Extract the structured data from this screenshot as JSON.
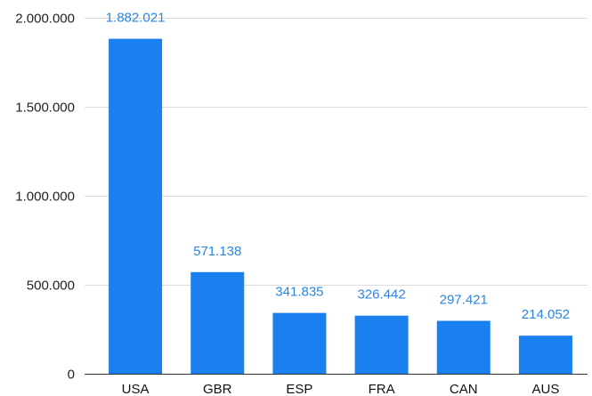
{
  "chart_data": {
    "type": "bar",
    "categories": [
      "USA",
      "GBR",
      "ESP",
      "FRA",
      "CAN",
      "AUS"
    ],
    "values": [
      1882021,
      571138,
      341835,
      326442,
      297421,
      214052
    ],
    "value_labels": [
      "1.882.021",
      "571.138",
      "341.835",
      "326.442",
      "297.421",
      "214.052"
    ],
    "ylim": [
      0,
      2000000
    ],
    "yticks": [
      0,
      500000,
      1000000,
      1500000,
      2000000
    ],
    "ytick_labels": [
      "0",
      "500.000",
      "1.000.000",
      "1.500.000",
      "2.000.000"
    ],
    "grid": true,
    "legend": false,
    "colors": {
      "bar": "#1b80ef",
      "data_label": "#2b86e3",
      "grid": "#dcdcdc",
      "axis": "#333333"
    }
  }
}
